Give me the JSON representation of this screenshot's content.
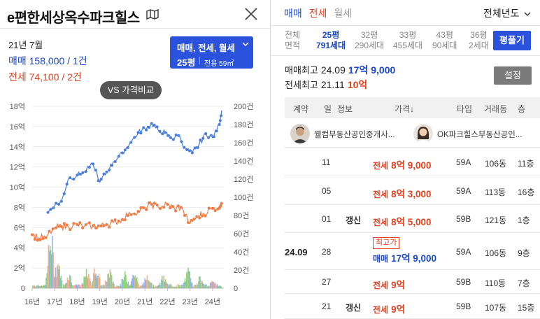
{
  "complex": {
    "title": "e편한세상옥수파크힐스",
    "month": "21년 7월",
    "trade_summary": "매매 158,000 / 1건",
    "jeonse_summary": "전세 74,100 / 2건",
    "type_selector": {
      "deal_types": "매매, 전세, 월세",
      "size": "25평",
      "area": "전용 59㎡"
    },
    "compare_button": "VS 가격비교"
  },
  "chart_data": {
    "type": "line",
    "x_ticks": [
      "16년",
      "17년",
      "18년",
      "19년",
      "20년",
      "21년",
      "22년",
      "23년",
      "24년"
    ],
    "y_left_ticks": [
      "0",
      "2억",
      "4억",
      "6억",
      "8억",
      "10억",
      "12억",
      "14억",
      "16억",
      "18억"
    ],
    "y_left_range": [
      0,
      18
    ],
    "y_right_ticks": [
      "0",
      "20건",
      "40건",
      "60건",
      "80건",
      "100건",
      "120건",
      "140건",
      "160건",
      "180건",
      "200건"
    ],
    "y_right_range": [
      0,
      200
    ],
    "series": [
      {
        "color": "#4a7de0",
        "x": [
          16.7,
          17.0,
          17.3,
          17.6,
          18.0,
          18.3,
          18.7,
          19.0,
          19.3,
          19.6,
          20.0,
          20.3,
          20.7,
          21.0,
          21.3,
          21.6,
          21.9,
          22.2,
          22.5,
          22.8,
          23.1,
          23.4,
          23.7,
          24.0,
          24.3,
          24.4
        ],
        "values": [
          7.5,
          8.2,
          8.6,
          10.8,
          11.2,
          11.5,
          12.3,
          10.5,
          11.5,
          12.5,
          13.4,
          14.2,
          15.4,
          15.8,
          16.3,
          15.6,
          15.4,
          14.8,
          15.1,
          13.8,
          13.4,
          14.2,
          15.3,
          14.9,
          16.2,
          17.6
        ]
      },
      {
        "color": "#f07c45",
        "x": [
          16.0,
          16.3,
          16.6,
          17.0,
          17.3,
          17.6,
          18.0,
          18.3,
          18.7,
          19.0,
          19.3,
          19.6,
          20.0,
          20.3,
          20.7,
          21.0,
          21.3,
          21.6,
          22.0,
          22.3,
          22.6,
          23.0,
          23.3,
          23.6,
          24.0,
          24.3,
          24.4
        ],
        "values": [
          5.3,
          5.0,
          5.0,
          6.0,
          6.1,
          6.1,
          6.3,
          6.1,
          6.2,
          6.1,
          6.3,
          6.5,
          6.8,
          7.5,
          7.6,
          8.0,
          8.3,
          8.0,
          8.3,
          7.9,
          8.0,
          6.4,
          7.1,
          7.4,
          7.9,
          8.1,
          8.4
        ]
      }
    ],
    "volume_bars": {
      "x_start": 16.0,
      "x_end": 24.4,
      "peaks": [
        {
          "x": 16.8,
          "value": 80
        },
        {
          "x": 17.1,
          "value": 40
        },
        {
          "x": 17.6,
          "value": 20
        },
        {
          "x": 18.4,
          "value": 22
        },
        {
          "x": 18.8,
          "value": 32
        },
        {
          "x": 19.4,
          "value": 24
        },
        {
          "x": 20.1,
          "value": 18
        },
        {
          "x": 20.5,
          "value": 22
        },
        {
          "x": 21.1,
          "value": 20
        },
        {
          "x": 21.8,
          "value": 15
        },
        {
          "x": 22.9,
          "value": 24
        },
        {
          "x": 23.4,
          "value": 14
        },
        {
          "x": 24.0,
          "value": 10
        }
      ]
    }
  },
  "right": {
    "tabs": {
      "trade": "매매",
      "jeonse": "전세",
      "wolse": "월세"
    },
    "year_select": "전체년도",
    "area_header": {
      "line1": "전체",
      "line2": "면적"
    },
    "areas": [
      {
        "size": "25평",
        "count": "791세대",
        "selected": true
      },
      {
        "size": "32평",
        "count": "290세대",
        "selected": false
      },
      {
        "size": "33평",
        "count": "455세대",
        "selected": false
      },
      {
        "size": "43평",
        "count": "90세대",
        "selected": false
      },
      {
        "size": "36평",
        "count": "2세대",
        "selected": false
      }
    ],
    "pyeong_button": "평풀기",
    "max_trade": {
      "label": "매매최고",
      "ym": "24.09",
      "price": "17억 9,000"
    },
    "max_jeonse": {
      "label": "전세최고",
      "ym": "21.11",
      "price": "10억"
    },
    "setting_button": "설정",
    "table_headers": {
      "contract": "계약",
      "day": "일",
      "info": "정보",
      "price": "가격↓",
      "type": "타입",
      "dong": "거래동",
      "floor": "층"
    },
    "brokers": [
      {
        "name": "웰컴부동산공인중개사..."
      },
      {
        "name": "OK파크힐스부동산공인..."
      }
    ],
    "rows": [
      {
        "date": "",
        "day": "11",
        "info": "",
        "kind": "전세",
        "price": "8억 9,000",
        "type": "59A",
        "dong": "106동",
        "floor": "11층"
      },
      {
        "date": "",
        "day": "05",
        "info": "",
        "kind": "전세",
        "price": "8억 3,000",
        "type": "59A",
        "dong": "113동",
        "floor": "16층"
      },
      {
        "date": "",
        "day": "01",
        "info": "갱신",
        "kind": "전세",
        "price": "8억 5,000",
        "type": "59B",
        "dong": "121동",
        "floor": "1층"
      },
      {
        "date": "24.09",
        "day": "28",
        "info": "",
        "badge": "최고가",
        "kind": "매매",
        "price": "17억 9,000",
        "type": "59A",
        "dong": "106동",
        "floor": "9층"
      },
      {
        "date": "",
        "day": "27",
        "info": "",
        "kind": "전세",
        "price": "9억",
        "type": "59B",
        "dong": "110동",
        "floor": "7층"
      },
      {
        "date": "",
        "day": "21",
        "info": "갱신",
        "kind": "전세",
        "price": "9억",
        "type": "59B",
        "dong": "107동",
        "floor": "15층"
      }
    ]
  }
}
